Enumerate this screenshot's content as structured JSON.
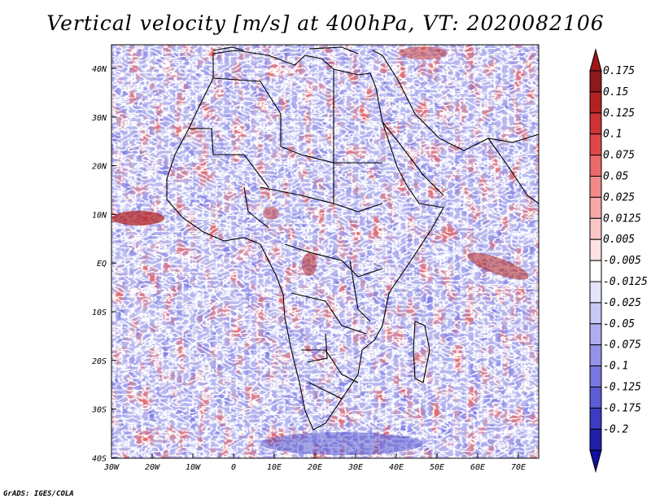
{
  "title": "Vertical velocity [m/s] at 400hPa, VT: 2020082106",
  "credit": "GrADS: IGES/COLA",
  "map": {
    "lat_labels": [
      "40N",
      "30N",
      "20N",
      "10N",
      "EQ",
      "10S",
      "20S",
      "30S",
      "40S"
    ],
    "lon_labels": [
      "30W",
      "20W",
      "10W",
      "0",
      "10E",
      "20E",
      "30E",
      "40E",
      "50E",
      "60E",
      "70E"
    ],
    "lon_range": [
      -30,
      75
    ],
    "lat_range": [
      -40,
      45
    ]
  },
  "colorbar": {
    "levels": [
      {
        "label": "0.175",
        "color": "#8b1a1a"
      },
      {
        "label": "0.15",
        "color": "#b22222"
      },
      {
        "label": "0.125",
        "color": "#cd3333"
      },
      {
        "label": "0.1",
        "color": "#e04848"
      },
      {
        "label": "0.075",
        "color": "#ec6a6a"
      },
      {
        "label": "0.05",
        "color": "#f28a8a"
      },
      {
        "label": "0.025",
        "color": "#f7a8a8"
      },
      {
        "label": "0.0125",
        "color": "#fbc6c6"
      },
      {
        "label": "0.005",
        "color": "#fde3e3"
      },
      {
        "label": "-0.005",
        "color": "#ffffff"
      },
      {
        "label": "-0.0125",
        "color": "#e4e4fb"
      },
      {
        "label": "-0.025",
        "color": "#c9c9f5"
      },
      {
        "label": "-0.05",
        "color": "#aeaeef"
      },
      {
        "label": "-0.075",
        "color": "#9393e9"
      },
      {
        "label": "-0.1",
        "color": "#7878e0"
      },
      {
        "label": "-0.125",
        "color": "#5d5dd6"
      },
      {
        "label": "-0.175",
        "color": "#3b3bc4"
      },
      {
        "label": "-0.2",
        "color": "#2020aa"
      }
    ],
    "top_arrow_color": "#a01818",
    "bottom_arrow_color": "#1010a0"
  }
}
